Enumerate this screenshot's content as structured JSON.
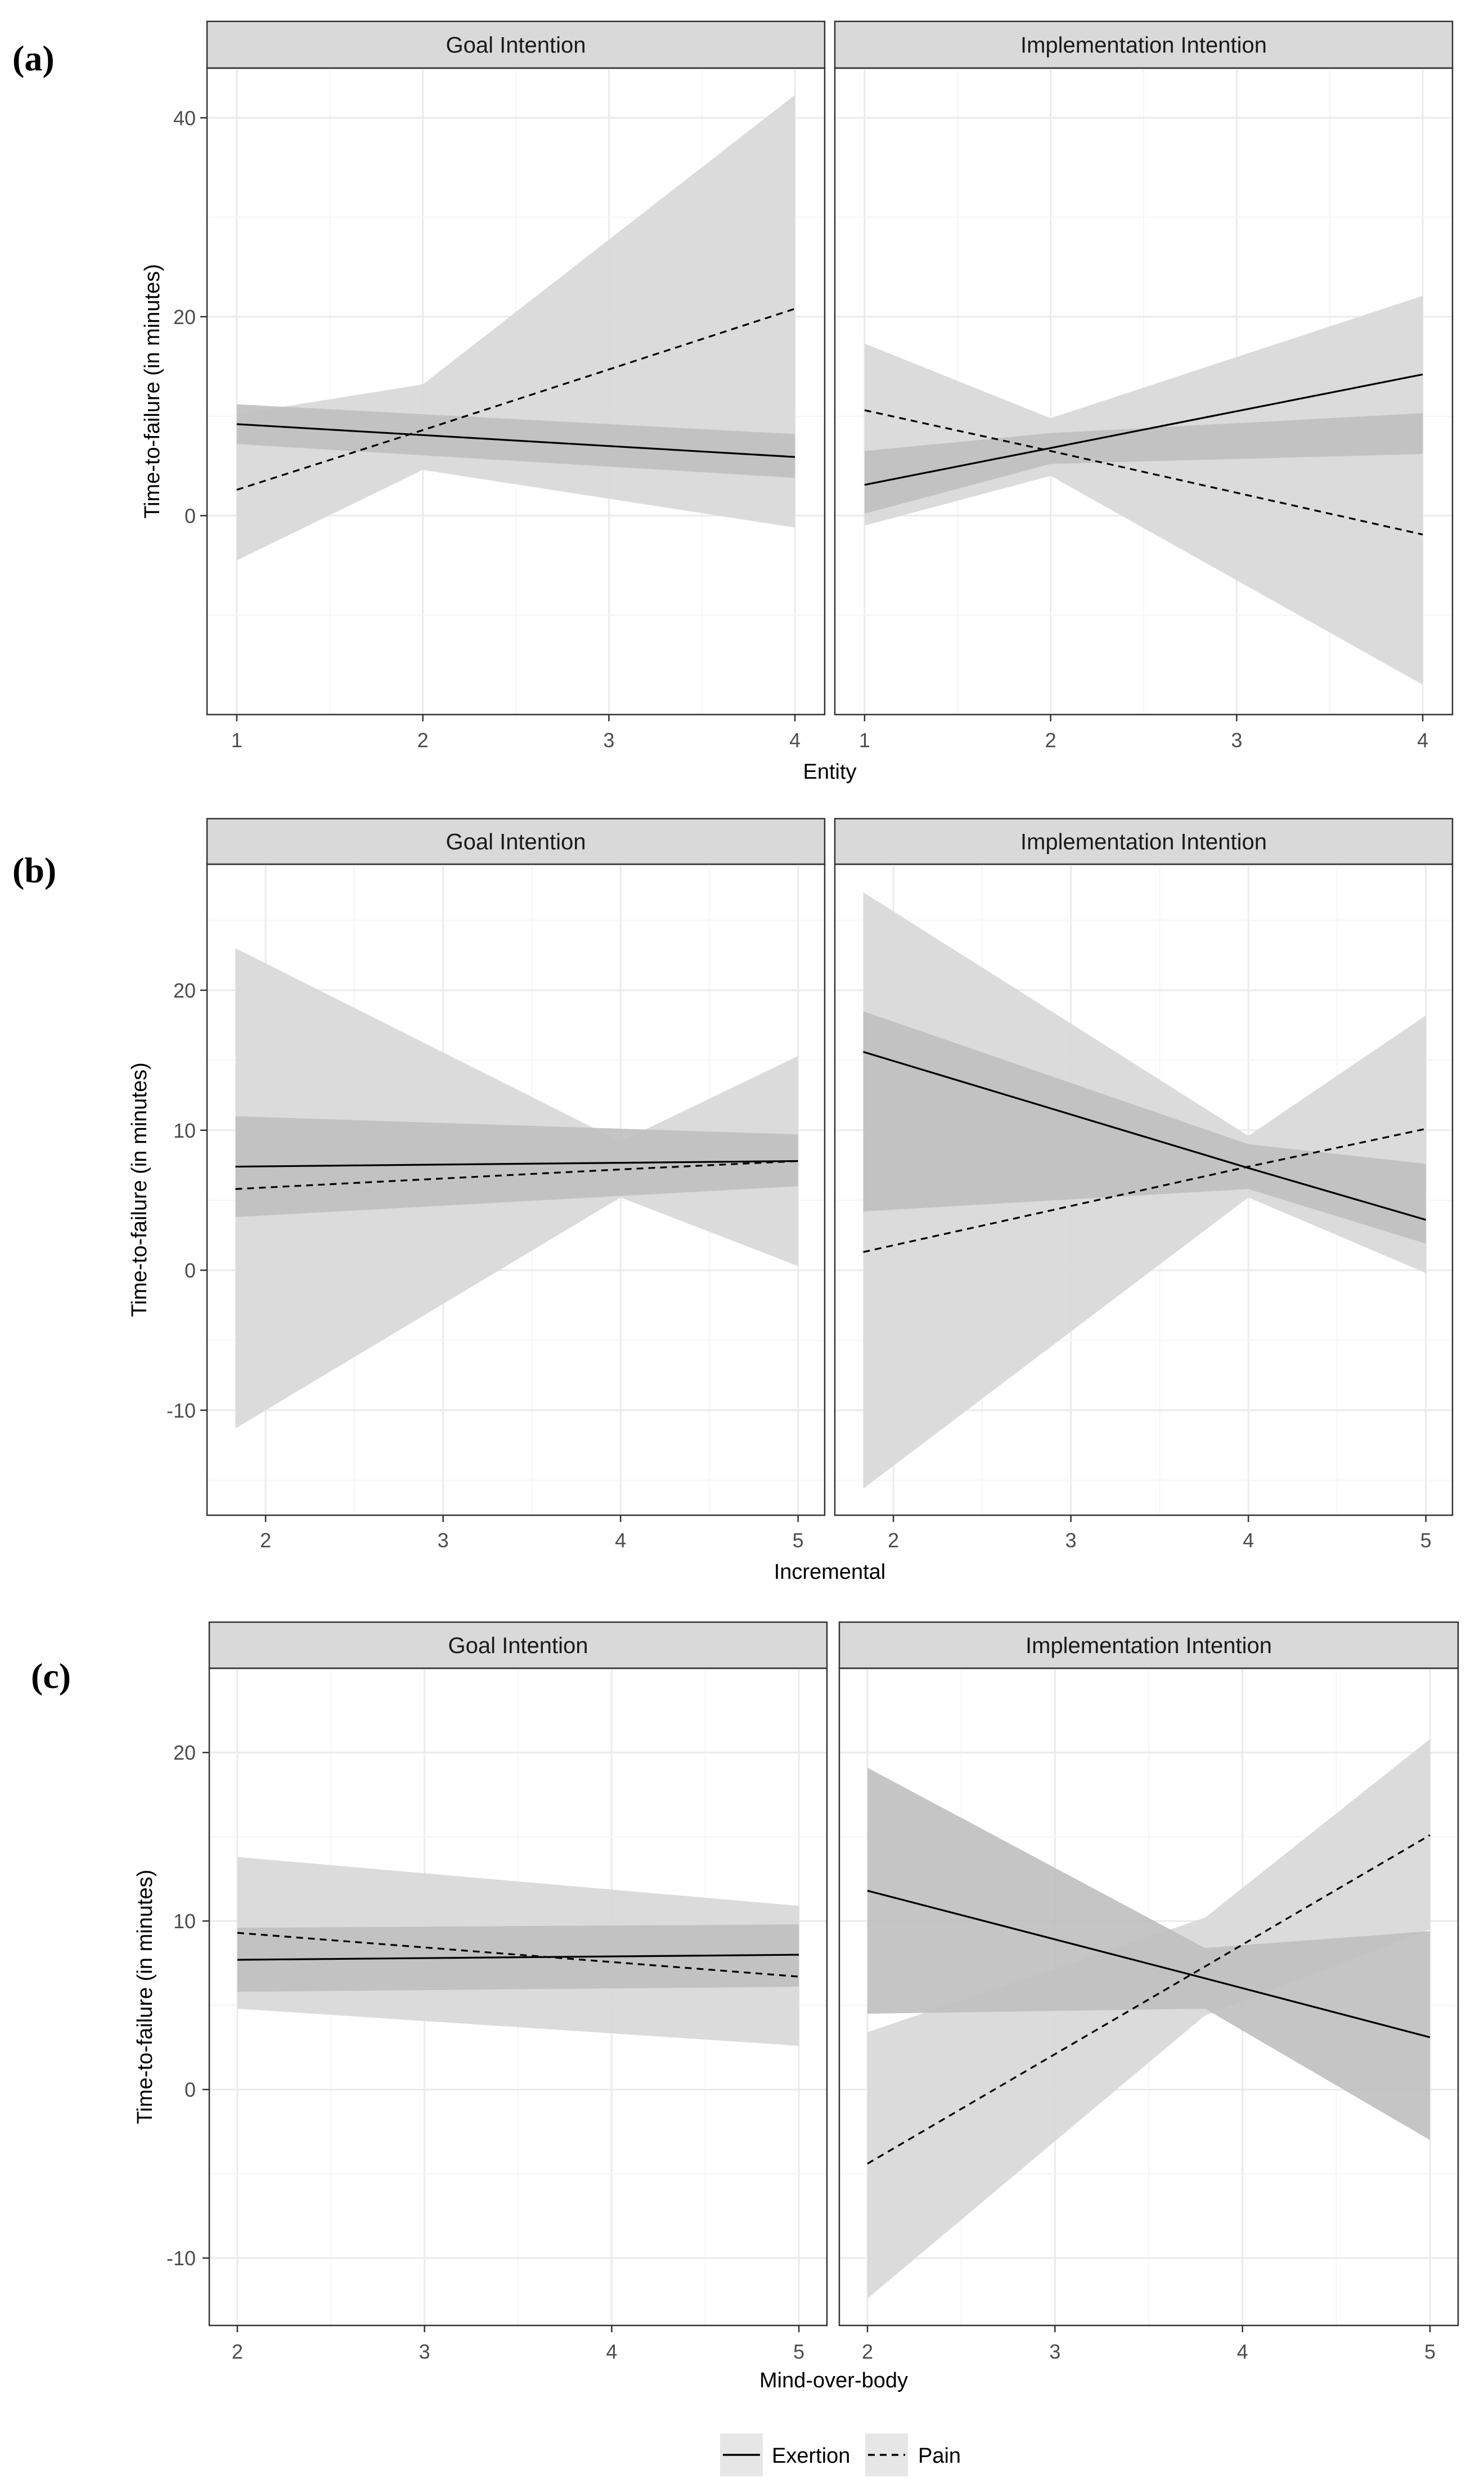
{
  "legend": {
    "entries": [
      {
        "name": "Exertion",
        "dash": "solid"
      },
      {
        "name": "Pain",
        "dash": "dashed"
      }
    ],
    "placement": "bottom"
  },
  "colors": {
    "ci_exertion": "#bfbfbf",
    "ci_pain": "#d9d9d9",
    "line": "#000000",
    "strip": "#d9d9d9",
    "grid_major": "#ebebeb",
    "grid_minor": "#f5f5f5"
  },
  "chart_data": [
    {
      "type": "line",
      "panel_label": "(a)",
      "xlabel": "Entity",
      "ylabel": "Time-to-failure (in minutes)",
      "xlim": [
        0.84,
        4.16
      ],
      "ylim": [
        -20,
        45
      ],
      "xticks": [
        1,
        2,
        3,
        4
      ],
      "xtick_labels": [
        "1",
        "2",
        "3",
        "4"
      ],
      "yticks": [
        0,
        20,
        40
      ],
      "ytick_labels": [
        "0",
        "20",
        "40"
      ],
      "facets": [
        {
          "title": "Goal Intention",
          "series": [
            {
              "name": "Exertion",
              "x": [
                1,
                4
              ],
              "y": [
                9.2,
                5.9
              ],
              "lower": [
                7.2,
                3.8
              ],
              "upper": [
                11.2,
                8.2
              ]
            },
            {
              "name": "Pain",
              "x": [
                1,
                2,
                4
              ],
              "y": [
                2.6,
                8.6,
                20.8
              ],
              "lower": [
                -4.5,
                4.6,
                -1.2
              ],
              "upper": [
                10.2,
                13.2,
                42.3
              ]
            }
          ]
        },
        {
          "title": "Implementation Intention",
          "series": [
            {
              "name": "Exertion",
              "x": [
                1,
                2,
                4
              ],
              "y": [
                3.1,
                6.8,
                14.2
              ],
              "lower": [
                0.2,
                5.2,
                6.2
              ],
              "upper": [
                6.5,
                8.3,
                10.3
              ]
            },
            {
              "name": "Pain",
              "x": [
                1,
                2,
                4
              ],
              "y": [
                10.6,
                6.5,
                -1.9
              ],
              "lower": [
                -1.0,
                4.0,
                -17.0
              ],
              "upper": [
                17.3,
                9.8,
                22.1
              ]
            }
          ]
        }
      ]
    },
    {
      "type": "line",
      "panel_label": "(b)",
      "xlabel": "Incremental",
      "ylabel": "Time-to-failure (in minutes)",
      "xlim": [
        1.67,
        5.15
      ],
      "ylim": [
        -17.5,
        29
      ],
      "xticks": [
        2,
        3,
        4,
        5
      ],
      "xtick_labels": [
        "2",
        "3",
        "4",
        "5"
      ],
      "yticks": [
        -10,
        0,
        10,
        20
      ],
      "ytick_labels": [
        "-10",
        "0",
        "10",
        "20"
      ],
      "facets": [
        {
          "title": "Goal Intention",
          "series": [
            {
              "name": "Exertion",
              "x": [
                1.83,
                5
              ],
              "y": [
                7.4,
                7.8
              ],
              "lower": [
                3.8,
                6.0
              ],
              "upper": [
                11.0,
                9.7
              ]
            },
            {
              "name": "Pain",
              "x": [
                1.83,
                4,
                5
              ],
              "y": [
                5.8,
                7.2,
                7.8
              ],
              "lower": [
                -11.3,
                5.2,
                0.3
              ],
              "upper": [
                23.0,
                9.2,
                15.3
              ]
            }
          ]
        },
        {
          "title": "Implementation Intention",
          "series": [
            {
              "name": "Exertion",
              "x": [
                1.83,
                4,
                5
              ],
              "y": [
                15.6,
                7.3,
                3.6
              ],
              "lower": [
                4.2,
                5.8,
                1.9
              ],
              "upper": [
                18.5,
                9.0,
                7.6
              ]
            },
            {
              "name": "Pain",
              "x": [
                1.83,
                4,
                5
              ],
              "y": [
                1.3,
                7.4,
                10.1
              ],
              "lower": [
                -15.6,
                5.2,
                -0.2
              ],
              "upper": [
                27.0,
                9.6,
                18.2
              ]
            }
          ]
        }
      ]
    },
    {
      "type": "line",
      "panel_label": "(c)",
      "xlabel": "Mind-over-body",
      "ylabel": "Time-to-failure (in minutes)",
      "xlim": [
        1.85,
        5.15
      ],
      "ylim": [
        -14,
        25
      ],
      "xticks": [
        2,
        3,
        4,
        5
      ],
      "xtick_labels": [
        "2",
        "3",
        "4",
        "5"
      ],
      "yticks": [
        -10,
        0,
        10,
        20
      ],
      "ytick_labels": [
        "-10",
        "0",
        "10",
        "20"
      ],
      "facets": [
        {
          "title": "Goal Intention",
          "series": [
            {
              "name": "Exertion",
              "x": [
                2,
                5
              ],
              "y": [
                7.7,
                8.0
              ],
              "lower": [
                5.8,
                6.1
              ],
              "upper": [
                9.6,
                9.8
              ]
            },
            {
              "name": "Pain",
              "x": [
                2,
                5
              ],
              "y": [
                9.3,
                6.7
              ],
              "lower": [
                4.8,
                2.6
              ],
              "upper": [
                13.8,
                10.9
              ]
            }
          ]
        },
        {
          "title": "Implementation Intention",
          "series": [
            {
              "name": "Exertion",
              "x": [
                2,
                3.8,
                5
              ],
              "y": [
                11.8,
                6.6,
                3.1
              ],
              "lower": [
                4.5,
                4.8,
                -3.0
              ],
              "upper": [
                19.1,
                8.4,
                9.4
              ]
            },
            {
              "name": "Pain",
              "x": [
                2,
                3.8,
                5
              ],
              "y": [
                -4.4,
                7.3,
                15.1
              ],
              "lower": [
                -12.4,
                4.4,
                9.5
              ],
              "upper": [
                3.4,
                10.2,
                20.8
              ]
            }
          ]
        }
      ]
    }
  ]
}
